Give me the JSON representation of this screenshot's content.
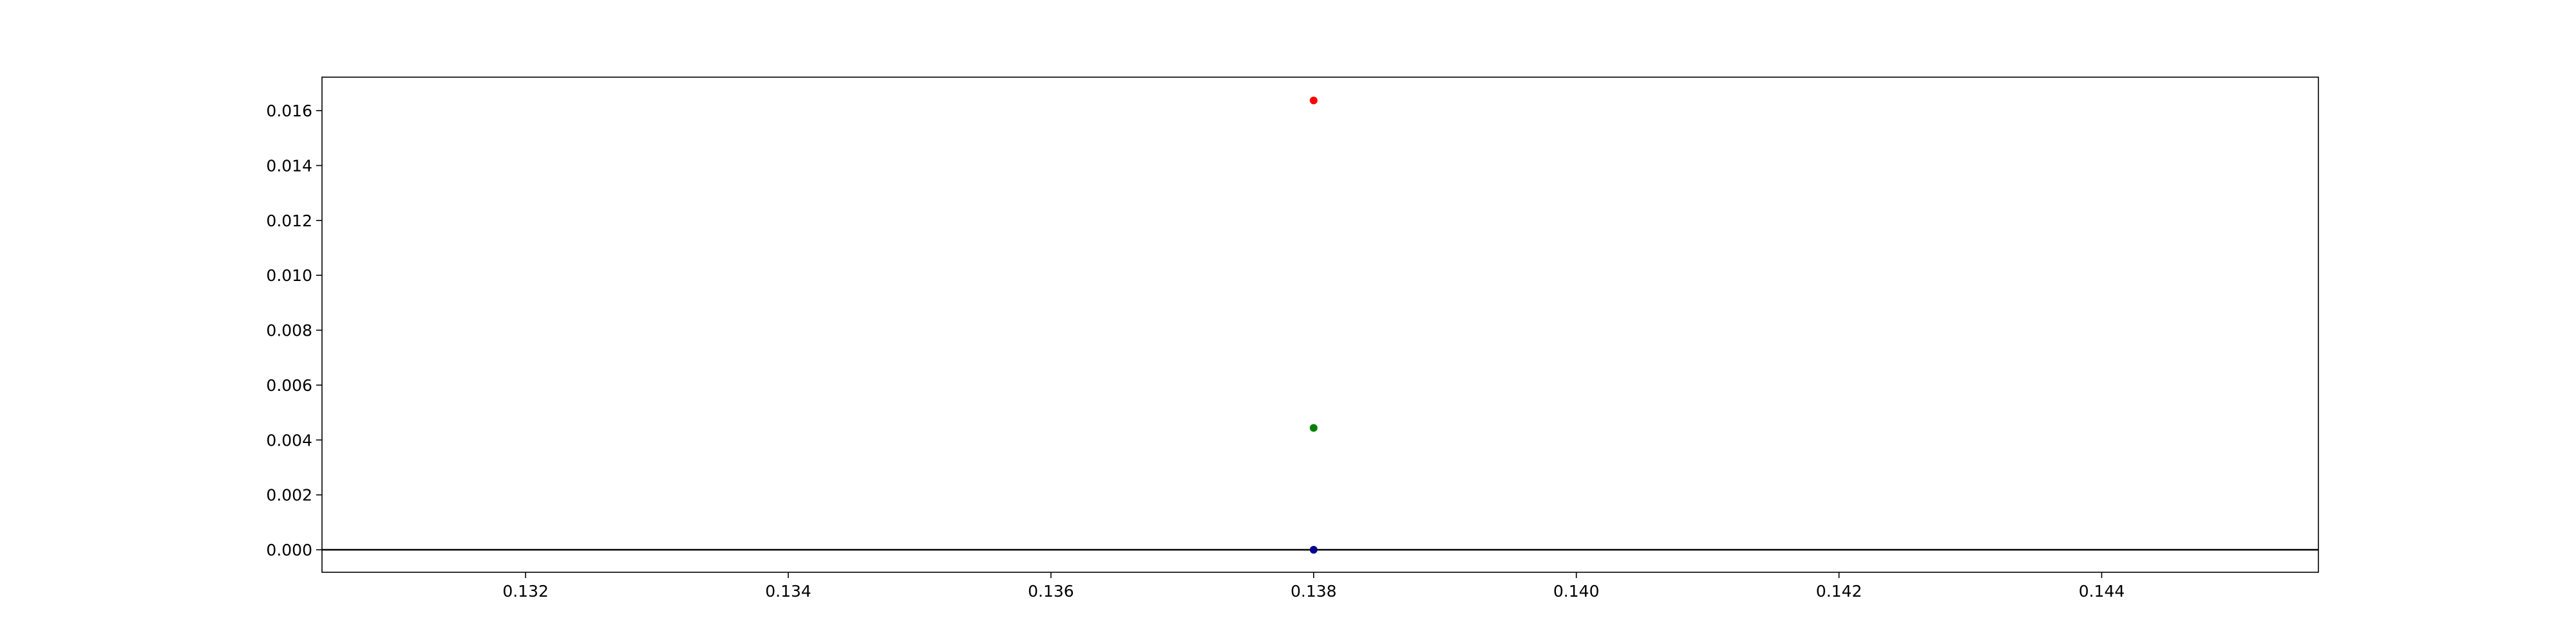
{
  "chart_data": {
    "type": "scatter",
    "title": "",
    "xlabel": "",
    "ylabel": "",
    "xlim": [
      0.13045,
      0.14565
    ],
    "ylim": [
      -0.00082,
      0.01722
    ],
    "grid": false,
    "legend": "none",
    "x_ticks": [
      {
        "value": 0.132,
        "label": "0.132"
      },
      {
        "value": 0.134,
        "label": "0.134"
      },
      {
        "value": 0.136,
        "label": "0.136"
      },
      {
        "value": 0.138,
        "label": "0.138"
      },
      {
        "value": 0.14,
        "label": "0.140"
      },
      {
        "value": 0.142,
        "label": "0.142"
      },
      {
        "value": 0.144,
        "label": "0.144"
      }
    ],
    "y_ticks": [
      {
        "value": 0.0,
        "label": "0.000"
      },
      {
        "value": 0.002,
        "label": "0.002"
      },
      {
        "value": 0.004,
        "label": "0.004"
      },
      {
        "value": 0.006,
        "label": "0.006"
      },
      {
        "value": 0.008,
        "label": "0.008"
      },
      {
        "value": 0.01,
        "label": "0.010"
      },
      {
        "value": 0.012,
        "label": "0.012"
      },
      {
        "value": 0.014,
        "label": "0.014"
      },
      {
        "value": 0.016,
        "label": "0.016"
      }
    ],
    "reference_lines": [
      {
        "orientation": "horizontal",
        "y": 0,
        "color": "#000000"
      }
    ],
    "points": [
      {
        "x": 0.138,
        "y": 0.01637,
        "color": "#ff0000"
      },
      {
        "x": 0.138,
        "y": 0.00444,
        "color": "#008000"
      },
      {
        "x": 0.138,
        "y": 0.0,
        "color": "#00008b"
      }
    ]
  }
}
